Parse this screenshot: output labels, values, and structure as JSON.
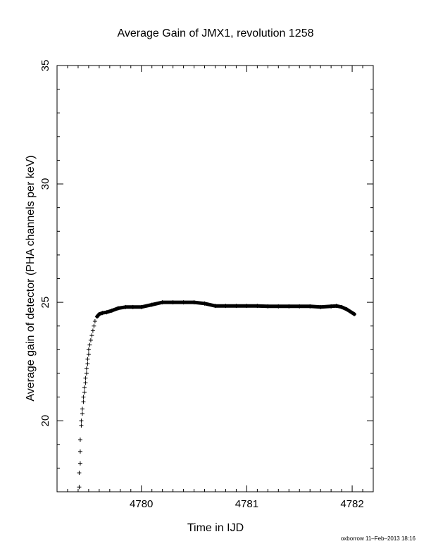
{
  "footer": "oxborrow 11–Feb–2013 18:16",
  "chart_data": {
    "type": "scatter",
    "title": "Average Gain of JMX1, revolution 1258",
    "xlabel": "Time in IJD",
    "ylabel": "Average gain of detector (PHA channels per keV)",
    "xlim": [
      4779.2,
      4782.2
    ],
    "ylim": [
      17.0,
      35.0
    ],
    "xticks": [
      4780,
      4781,
      4782
    ],
    "yticks": [
      20,
      25,
      30,
      35
    ],
    "grid": false,
    "marker": "plus",
    "series": [
      {
        "x": [
          4779.41,
          4779.41,
          4779.42,
          4779.42,
          4779.42,
          4779.43,
          4779.43,
          4779.44,
          4779.44,
          4779.45,
          4779.45,
          4779.46,
          4779.46,
          4779.47,
          4779.47,
          4779.48,
          4779.48,
          4779.49,
          4779.49,
          4779.5,
          4779.5,
          4779.51,
          4779.52,
          4779.53,
          4779.54,
          4779.55,
          4779.56,
          4779.58,
          4779.6,
          4779.63,
          4779.67,
          4779.72,
          4779.78,
          4779.85,
          4779.92,
          4780.0,
          4780.1,
          4780.2,
          4780.3,
          4780.4,
          4780.5,
          4780.6,
          4780.7,
          4780.8,
          4780.9,
          4781.0,
          4781.1,
          4781.2,
          4781.3,
          4781.4,
          4781.5,
          4781.6,
          4781.7,
          4781.8,
          4781.85,
          4781.9,
          4781.95,
          4782.02
        ],
        "y": [
          17.2,
          17.8,
          18.2,
          18.7,
          19.2,
          19.8,
          20.0,
          20.3,
          20.5,
          20.8,
          21.0,
          21.2,
          21.4,
          21.6,
          21.8,
          22.0,
          22.2,
          22.4,
          22.6,
          22.8,
          23.0,
          23.2,
          23.4,
          23.6,
          23.8,
          24.0,
          24.2,
          24.4,
          24.5,
          24.55,
          24.58,
          24.65,
          24.75,
          24.8,
          24.8,
          24.8,
          24.9,
          25.0,
          25.0,
          25.0,
          25.0,
          24.95,
          24.85,
          24.85,
          24.85,
          24.85,
          24.85,
          24.83,
          24.83,
          24.83,
          24.83,
          24.83,
          24.8,
          24.83,
          24.85,
          24.8,
          24.7,
          24.5
        ]
      }
    ]
  }
}
